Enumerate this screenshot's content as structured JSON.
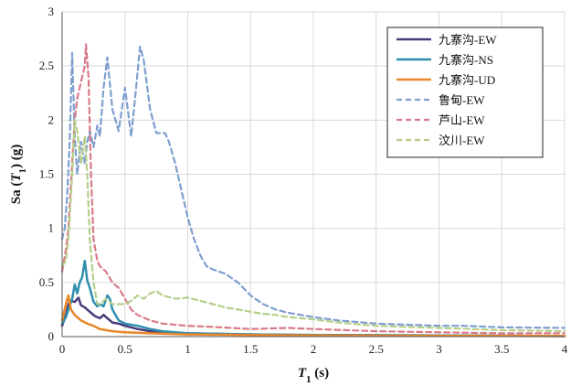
{
  "chart_data": {
    "type": "line",
    "title": "",
    "xlabel_main": "T",
    "xlabel_sub": "1",
    "xlabel_unit": " (s)",
    "ylabel_prefix": "Sa (",
    "ylabel_var": "T",
    "ylabel_sub": "1",
    "ylabel_suffix": ") (g)",
    "xlim": [
      0,
      4
    ],
    "ylim": [
      0,
      3
    ],
    "xticks": [
      0,
      0.5,
      1,
      1.5,
      2,
      2.5,
      3,
      3.5,
      4
    ],
    "xtick_labels": [
      "0",
      "0.5",
      "1",
      "1.5",
      "2",
      "2.5",
      "3",
      "3.5",
      "4"
    ],
    "yticks": [
      0,
      0.5,
      1,
      1.5,
      2,
      2.5,
      3
    ],
    "ytick_labels": [
      "0",
      "0.5",
      "1",
      "1.5",
      "2",
      "2.5",
      "3"
    ],
    "grid": true,
    "legend_position": "top-right",
    "series": [
      {
        "name": "九寨沟-EW",
        "color": "#4a3a7a",
        "dash": "solid",
        "points": [
          [
            0,
            0.1
          ],
          [
            0.03,
            0.2
          ],
          [
            0.05,
            0.3
          ],
          [
            0.07,
            0.33
          ],
          [
            0.1,
            0.32
          ],
          [
            0.13,
            0.36
          ],
          [
            0.15,
            0.29
          ],
          [
            0.18,
            0.27
          ],
          [
            0.2,
            0.25
          ],
          [
            0.23,
            0.22
          ],
          [
            0.26,
            0.19
          ],
          [
            0.3,
            0.17
          ],
          [
            0.33,
            0.2
          ],
          [
            0.36,
            0.17
          ],
          [
            0.4,
            0.13
          ],
          [
            0.45,
            0.12
          ],
          [
            0.5,
            0.1
          ],
          [
            0.6,
            0.07
          ],
          [
            0.7,
            0.05
          ],
          [
            0.8,
            0.04
          ],
          [
            1.0,
            0.03
          ],
          [
            1.5,
            0.02
          ],
          [
            2.0,
            0.015
          ],
          [
            3.0,
            0.01
          ],
          [
            4.0,
            0.005
          ]
        ]
      },
      {
        "name": "九寨沟-NS",
        "color": "#2f8fae",
        "dash": "solid",
        "points": [
          [
            0,
            0.12
          ],
          [
            0.03,
            0.18
          ],
          [
            0.05,
            0.25
          ],
          [
            0.08,
            0.35
          ],
          [
            0.1,
            0.48
          ],
          [
            0.12,
            0.4
          ],
          [
            0.14,
            0.5
          ],
          [
            0.16,
            0.55
          ],
          [
            0.18,
            0.7
          ],
          [
            0.2,
            0.52
          ],
          [
            0.22,
            0.45
          ],
          [
            0.25,
            0.32
          ],
          [
            0.28,
            0.28
          ],
          [
            0.3,
            0.3
          ],
          [
            0.33,
            0.28
          ],
          [
            0.36,
            0.38
          ],
          [
            0.38,
            0.35
          ],
          [
            0.4,
            0.25
          ],
          [
            0.45,
            0.15
          ],
          [
            0.5,
            0.12
          ],
          [
            0.6,
            0.1
          ],
          [
            0.7,
            0.07
          ],
          [
            0.8,
            0.05
          ],
          [
            1.0,
            0.03
          ],
          [
            1.5,
            0.02
          ],
          [
            2.0,
            0.015
          ],
          [
            3.0,
            0.01
          ],
          [
            4.0,
            0.005
          ]
        ]
      },
      {
        "name": "九寨沟-UD",
        "color": "#e8862a",
        "dash": "solid",
        "points": [
          [
            0,
            0.15
          ],
          [
            0.03,
            0.3
          ],
          [
            0.05,
            0.38
          ],
          [
            0.07,
            0.25
          ],
          [
            0.1,
            0.2
          ],
          [
            0.15,
            0.15
          ],
          [
            0.2,
            0.12
          ],
          [
            0.25,
            0.1
          ],
          [
            0.3,
            0.07
          ],
          [
            0.4,
            0.05
          ],
          [
            0.5,
            0.04
          ],
          [
            0.7,
            0.03
          ],
          [
            1.0,
            0.02
          ],
          [
            1.5,
            0.015
          ],
          [
            2.0,
            0.01
          ],
          [
            3.0,
            0.008
          ],
          [
            4.0,
            0.005
          ]
        ]
      },
      {
        "name": "鲁甸-EW",
        "color": "#7f9fcf",
        "dash": "dashed",
        "points": [
          [
            0,
            0.9
          ],
          [
            0.02,
            1.0
          ],
          [
            0.04,
            1.3
          ],
          [
            0.06,
            1.8
          ],
          [
            0.08,
            2.62
          ],
          [
            0.1,
            1.85
          ],
          [
            0.12,
            1.5
          ],
          [
            0.15,
            1.8
          ],
          [
            0.18,
            1.6
          ],
          [
            0.2,
            1.8
          ],
          [
            0.22,
            1.9
          ],
          [
            0.25,
            1.75
          ],
          [
            0.28,
            1.95
          ],
          [
            0.3,
            1.85
          ],
          [
            0.33,
            2.3
          ],
          [
            0.36,
            2.58
          ],
          [
            0.4,
            2.1
          ],
          [
            0.45,
            1.9
          ],
          [
            0.5,
            2.3
          ],
          [
            0.55,
            1.85
          ],
          [
            0.58,
            2.2
          ],
          [
            0.62,
            2.68
          ],
          [
            0.65,
            2.55
          ],
          [
            0.7,
            2.1
          ],
          [
            0.75,
            1.88
          ],
          [
            0.82,
            1.88
          ],
          [
            0.85,
            1.8
          ],
          [
            0.9,
            1.6
          ],
          [
            0.95,
            1.35
          ],
          [
            1.0,
            1.1
          ],
          [
            1.05,
            0.9
          ],
          [
            1.1,
            0.75
          ],
          [
            1.15,
            0.65
          ],
          [
            1.2,
            0.62
          ],
          [
            1.3,
            0.58
          ],
          [
            1.4,
            0.5
          ],
          [
            1.5,
            0.38
          ],
          [
            1.6,
            0.3
          ],
          [
            1.7,
            0.25
          ],
          [
            1.8,
            0.22
          ],
          [
            1.9,
            0.2
          ],
          [
            2.0,
            0.18
          ],
          [
            2.2,
            0.15
          ],
          [
            2.5,
            0.12
          ],
          [
            3.0,
            0.1
          ],
          [
            3.2,
            0.1
          ],
          [
            3.5,
            0.085
          ],
          [
            4.0,
            0.08
          ]
        ]
      },
      {
        "name": "芦山-EW",
        "color": "#d97a8a",
        "dash": "dashed",
        "points": [
          [
            0,
            0.6
          ],
          [
            0.03,
            0.8
          ],
          [
            0.05,
            1.0
          ],
          [
            0.08,
            1.6
          ],
          [
            0.1,
            2.0
          ],
          [
            0.12,
            2.2
          ],
          [
            0.15,
            2.35
          ],
          [
            0.18,
            2.5
          ],
          [
            0.19,
            2.7
          ],
          [
            0.21,
            2.4
          ],
          [
            0.23,
            1.5
          ],
          [
            0.25,
            0.9
          ],
          [
            0.28,
            0.7
          ],
          [
            0.3,
            0.65
          ],
          [
            0.35,
            0.6
          ],
          [
            0.4,
            0.5
          ],
          [
            0.45,
            0.45
          ],
          [
            0.5,
            0.35
          ],
          [
            0.55,
            0.25
          ],
          [
            0.6,
            0.2
          ],
          [
            0.7,
            0.15
          ],
          [
            0.8,
            0.12
          ],
          [
            1.0,
            0.1
          ],
          [
            1.2,
            0.09
          ],
          [
            1.5,
            0.07
          ],
          [
            1.8,
            0.08
          ],
          [
            2.0,
            0.07
          ],
          [
            2.5,
            0.05
          ],
          [
            3.0,
            0.04
          ],
          [
            3.5,
            0.03
          ],
          [
            4.0,
            0.03
          ]
        ]
      },
      {
        "name": "汶川-EW",
        "color": "#b5cf8a",
        "dash": "dashed",
        "points": [
          [
            0,
            0.65
          ],
          [
            0.03,
            0.7
          ],
          [
            0.05,
            0.9
          ],
          [
            0.08,
            1.5
          ],
          [
            0.1,
            2.0
          ],
          [
            0.12,
            1.9
          ],
          [
            0.15,
            1.6
          ],
          [
            0.18,
            1.85
          ],
          [
            0.2,
            1.5
          ],
          [
            0.22,
            0.9
          ],
          [
            0.25,
            0.5
          ],
          [
            0.28,
            0.3
          ],
          [
            0.3,
            0.3
          ],
          [
            0.35,
            0.35
          ],
          [
            0.4,
            0.3
          ],
          [
            0.45,
            0.3
          ],
          [
            0.5,
            0.3
          ],
          [
            0.55,
            0.33
          ],
          [
            0.6,
            0.38
          ],
          [
            0.65,
            0.35
          ],
          [
            0.7,
            0.4
          ],
          [
            0.75,
            0.42
          ],
          [
            0.8,
            0.38
          ],
          [
            0.9,
            0.35
          ],
          [
            1.0,
            0.36
          ],
          [
            1.1,
            0.33
          ],
          [
            1.2,
            0.3
          ],
          [
            1.3,
            0.27
          ],
          [
            1.4,
            0.25
          ],
          [
            1.5,
            0.23
          ],
          [
            1.6,
            0.21
          ],
          [
            1.7,
            0.2
          ],
          [
            1.8,
            0.18
          ],
          [
            2.0,
            0.16
          ],
          [
            2.2,
            0.13
          ],
          [
            2.5,
            0.1
          ],
          [
            3.0,
            0.08
          ],
          [
            3.5,
            0.06
          ],
          [
            4.0,
            0.05
          ]
        ]
      }
    ]
  }
}
